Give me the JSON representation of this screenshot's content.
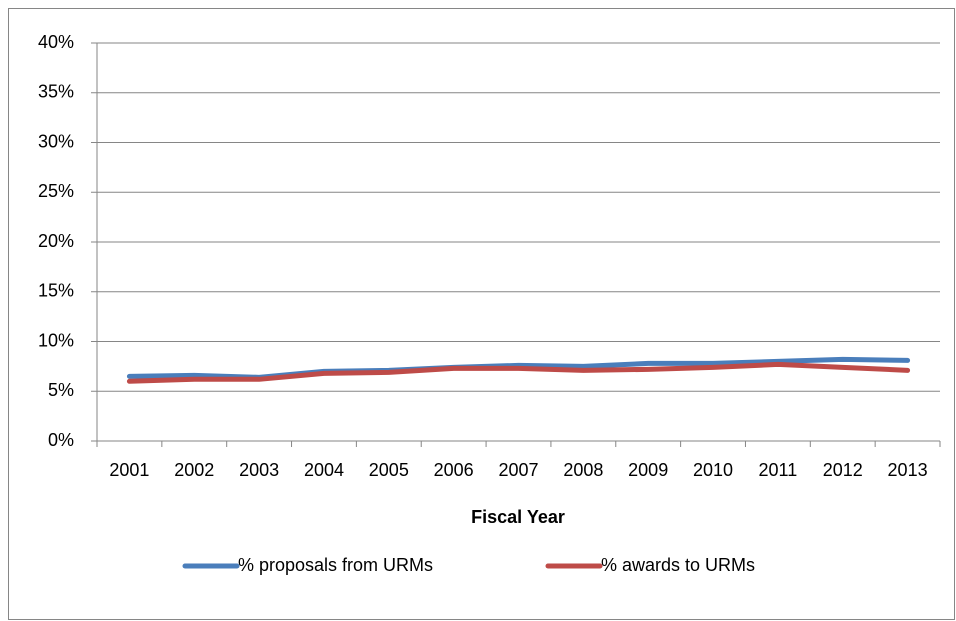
{
  "chart_data": {
    "type": "line",
    "x_label": "Fiscal Year",
    "categories": [
      "2001",
      "2002",
      "2003",
      "2004",
      "2005",
      "2006",
      "2007",
      "2008",
      "2009",
      "2010",
      "2011",
      "2012",
      "2013"
    ],
    "series": [
      {
        "name": "% proposals from URMs",
        "color": "#4a7ebb",
        "values": [
          6.5,
          6.6,
          6.4,
          7.0,
          7.1,
          7.4,
          7.6,
          7.5,
          7.8,
          7.8,
          8.0,
          8.2,
          8.1
        ]
      },
      {
        "name": "% awards to URMs",
        "color": "#be4b48",
        "values": [
          6.0,
          6.2,
          6.2,
          6.8,
          6.9,
          7.3,
          7.3,
          7.1,
          7.2,
          7.4,
          7.7,
          7.4,
          7.1
        ]
      }
    ],
    "ylim": [
      0,
      40
    ],
    "yticks": [
      {
        "value": 0,
        "label": "0%"
      },
      {
        "value": 5,
        "label": "5%"
      },
      {
        "value": 10,
        "label": "10%"
      },
      {
        "value": 15,
        "label": "15%"
      },
      {
        "value": 20,
        "label": "20%"
      },
      {
        "value": 25,
        "label": "25%"
      },
      {
        "value": 30,
        "label": "30%"
      },
      {
        "value": 35,
        "label": "35%"
      },
      {
        "value": 40,
        "label": "40%"
      }
    ],
    "grid": true,
    "legend": "bottom"
  }
}
